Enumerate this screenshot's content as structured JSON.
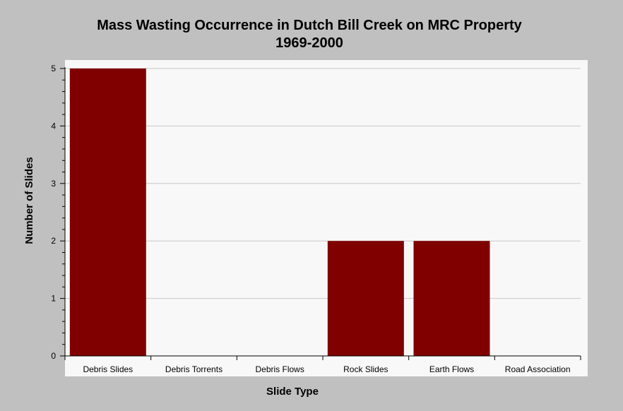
{
  "chart_data": {
    "type": "bar",
    "title": "Mass Wasting Occurrence in Dutch Bill Creek on MRC Property",
    "subtitle": "1969-2000",
    "xlabel": "Slide Type",
    "ylabel": "Number of Slides",
    "categories": [
      "Debris Slides",
      "Debris Torrents",
      "Debris Flows",
      "Rock Slides",
      "Earth Flows",
      "Road Association"
    ],
    "values": [
      5,
      0,
      0,
      2,
      2,
      0
    ],
    "ylim": [
      0,
      5
    ],
    "yticks": [
      "0",
      "1",
      "2",
      "3",
      "4",
      "5"
    ],
    "grid": true,
    "legend": "none",
    "bar_color": "#800000",
    "plot_background": "#f8f8f8",
    "background": "#c0c0c0"
  }
}
